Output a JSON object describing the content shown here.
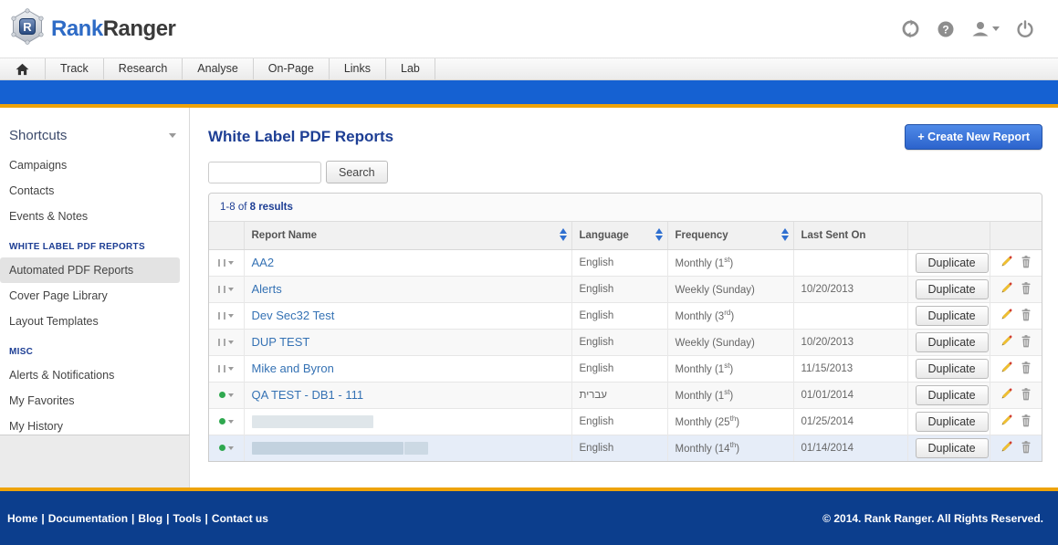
{
  "brand": {
    "logo_letter": "R",
    "name_blue": "Rank",
    "name_dark": "Ranger"
  },
  "header": {
    "icons": [
      "sync-icon",
      "help-icon",
      "user-icon",
      "power-icon"
    ]
  },
  "nav": {
    "tabs": [
      "Track",
      "Research",
      "Analyse",
      "On-Page",
      "Links",
      "Lab"
    ]
  },
  "sidebar": {
    "shortcuts_title": "Shortcuts",
    "shortcut_items": [
      "Campaigns",
      "Contacts",
      "Events & Notes"
    ],
    "sections": [
      {
        "title": "WHITE LABEL PDF REPORTS",
        "items": [
          "Automated PDF Reports",
          "Cover Page Library",
          "Layout Templates"
        ],
        "selected": "Automated PDF Reports"
      },
      {
        "title": "MISC",
        "items": [
          "Alerts & Notifications",
          "My Favorites",
          "My History"
        ]
      }
    ]
  },
  "main": {
    "page_title": "White Label PDF Reports",
    "create_button": "+ Create New Report",
    "search_button": "Search",
    "search_value": "",
    "results_prefix": "1-8 of ",
    "results_bold": "8 results"
  },
  "table": {
    "columns": {
      "report_name": "Report Name",
      "language": "Language",
      "frequency": "Frequency",
      "last_sent": "Last Sent On"
    },
    "duplicate_label": "Duplicate",
    "rows": [
      {
        "name": "AA2",
        "language": "English",
        "freq_base": "Monthly (1",
        "freq_sup": "st",
        "freq_end": ")",
        "last_sent": ""
      },
      {
        "name": "Alerts",
        "language": "English",
        "freq_base": "Weekly (Sunday)",
        "freq_sup": "",
        "freq_end": "",
        "last_sent": "10/20/2013"
      },
      {
        "name": "Dev Sec32 Test",
        "language": "English",
        "freq_base": "Monthly (3",
        "freq_sup": "rd",
        "freq_end": ")",
        "last_sent": ""
      },
      {
        "name": "DUP TEST",
        "language": "English",
        "freq_base": "Weekly (Sunday)",
        "freq_sup": "",
        "freq_end": "",
        "last_sent": "10/20/2013"
      },
      {
        "name": "Mike and Byron",
        "language": "English",
        "freq_base": "Monthly (1",
        "freq_sup": "st",
        "freq_end": ")",
        "last_sent": "11/15/2013"
      },
      {
        "name": "QA TEST - DB1 - 111",
        "language": "עברית",
        "freq_base": "Monthly (1",
        "freq_sup": "st",
        "freq_end": ")",
        "last_sent": "01/01/2014"
      },
      {
        "name": "",
        "redacted": true,
        "language": "English",
        "freq_base": "Monthly (25",
        "freq_sup": "th",
        "freq_end": ")",
        "last_sent": "01/25/2014"
      },
      {
        "name": "",
        "redacted": true,
        "language": "English",
        "freq_base": "Monthly (14",
        "freq_sup": "th",
        "freq_end": ")",
        "last_sent": "01/14/2014"
      }
    ]
  },
  "footer": {
    "links": [
      "Home",
      "Documentation",
      "Blog",
      "Tools",
      "Contact us"
    ],
    "separator": "|",
    "copyright": "© 2014. Rank Ranger. All Rights Reserved."
  },
  "colors": {
    "accent_blue": "#1561d2",
    "gold": "#eea30a",
    "footer_navy": "#0c3e8d",
    "link_blue": "#3572b4",
    "title_navy": "#1d3e94",
    "green_status": "#2fa84f"
  }
}
